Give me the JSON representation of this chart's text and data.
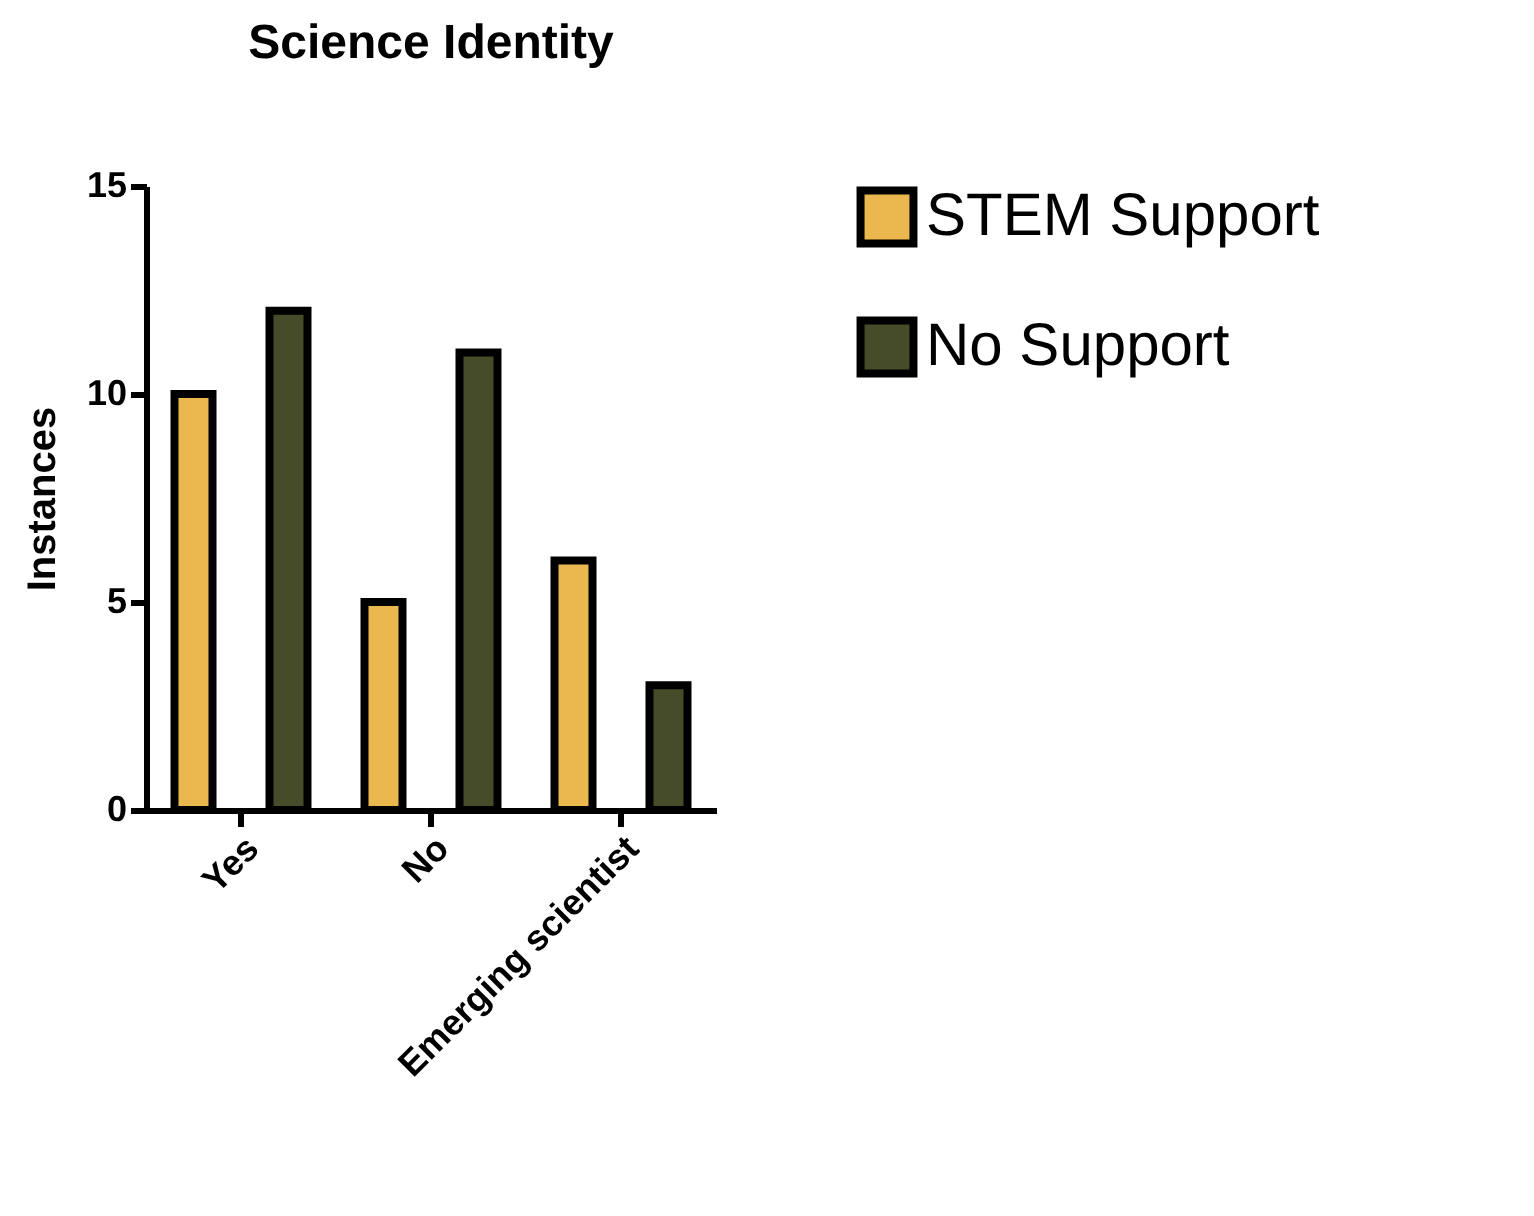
{
  "chart_data": {
    "type": "bar",
    "title": "Science Identity",
    "ylabel": "Instances",
    "categories": [
      "Yes",
      "No",
      "Emerging scientist"
    ],
    "series": [
      {
        "name": "STEM Support",
        "color": "#ebb84f",
        "values": [
          10,
          5,
          6
        ]
      },
      {
        "name": "No Support",
        "color": "#464c29",
        "values": [
          12,
          11,
          3
        ]
      }
    ],
    "ylim": [
      0,
      15
    ],
    "yticks": [
      0,
      5,
      10,
      15
    ],
    "legend": "right"
  }
}
